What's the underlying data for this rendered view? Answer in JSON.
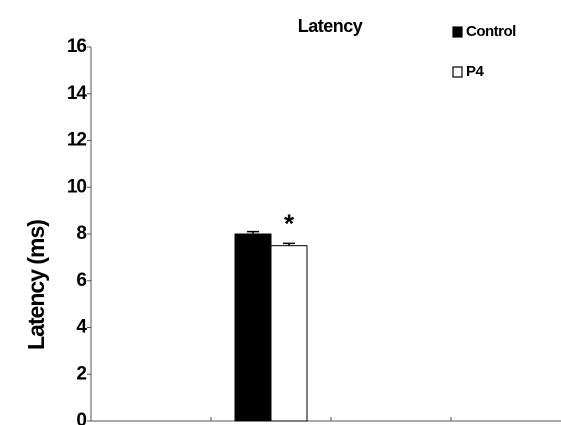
{
  "chart_data": {
    "type": "bar",
    "title": "Latency",
    "y_label": "Latency (ms)",
    "categories": [
      null,
      null,
      null,
      null
    ],
    "series": [
      {
        "name": "Control",
        "color": "#000000",
        "values": [
          null,
          8,
          null,
          null
        ],
        "errors": [
          null,
          0.1,
          null,
          null
        ]
      },
      {
        "name": "P4",
        "color": "#ffffff",
        "values": [
          null,
          7.5,
          null,
          null
        ],
        "errors": [
          null,
          0.1,
          null,
          null
        ]
      }
    ],
    "annotation": "*",
    "ylim": [
      0,
      16
    ],
    "yticks": [
      0,
      2,
      4,
      6,
      8,
      10,
      12,
      14,
      16
    ],
    "grid": false,
    "legend": "top-right"
  }
}
